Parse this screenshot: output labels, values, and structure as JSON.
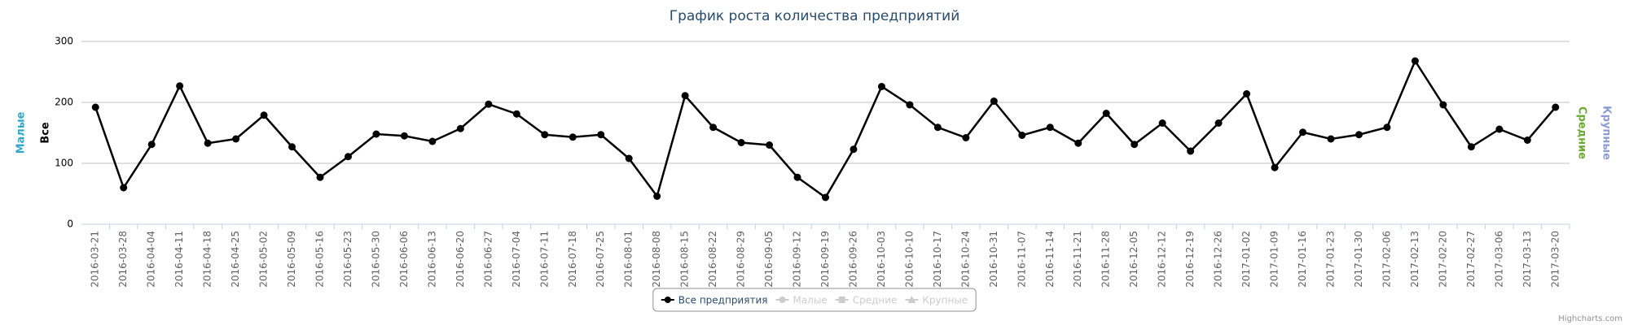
{
  "chart_data": {
    "type": "line",
    "title": "График роста количества предприятий",
    "categories": [
      "2016-03-21",
      "2016-03-28",
      "2016-04-04",
      "2016-04-11",
      "2016-04-18",
      "2016-04-25",
      "2016-05-02",
      "2016-05-09",
      "2016-05-16",
      "2016-05-23",
      "2016-05-30",
      "2016-06-06",
      "2016-06-13",
      "2016-06-20",
      "2016-06-27",
      "2016-07-04",
      "2016-07-11",
      "2016-07-18",
      "2016-07-25",
      "2016-08-01",
      "2016-08-08",
      "2016-08-15",
      "2016-08-22",
      "2016-08-29",
      "2016-09-05",
      "2016-09-12",
      "2016-09-19",
      "2016-09-26",
      "2016-10-03",
      "2016-10-10",
      "2016-10-17",
      "2016-10-24",
      "2016-10-31",
      "2016-11-07",
      "2016-11-14",
      "2016-11-21",
      "2016-11-28",
      "2016-12-05",
      "2016-12-12",
      "2016-12-19",
      "2016-12-26",
      "2017-01-02",
      "2017-01-09",
      "2017-01-16",
      "2017-01-23",
      "2017-01-30",
      "2017-02-06",
      "2017-02-13",
      "2017-02-20",
      "2017-02-27",
      "2017-03-06",
      "2017-03-13",
      "2017-03-20"
    ],
    "series": [
      {
        "name": "Все предприятия",
        "color": "#000000",
        "visible": true,
        "values": [
          192,
          60,
          131,
          227,
          133,
          140,
          179,
          127,
          77,
          111,
          148,
          145,
          136,
          157,
          197,
          181,
          147,
          143,
          147,
          108,
          46,
          211,
          159,
          134,
          130,
          77,
          44,
          123,
          226,
          196,
          159,
          142,
          202,
          146,
          159,
          133,
          182,
          131,
          166,
          120,
          166,
          214,
          93,
          151,
          140,
          147,
          159,
          268,
          196,
          127,
          156,
          138,
          192
        ]
      },
      {
        "name": "Малые",
        "color": "#2fa8c9",
        "visible": false
      },
      {
        "name": "Средние",
        "color": "#6aaa2e",
        "visible": false
      },
      {
        "name": "Крупные",
        "color": "#8b9bd3",
        "visible": false
      }
    ],
    "axes": [
      {
        "title": "Малые",
        "color": "#2fa8c9",
        "side": "left"
      },
      {
        "title": "Все",
        "color": "#000000",
        "side": "left"
      },
      {
        "title": "Средние",
        "color": "#6aaa2e",
        "side": "right"
      },
      {
        "title": "Крупные",
        "color": "#8b9bd3",
        "side": "right"
      }
    ],
    "ylim": [
      0,
      300
    ],
    "yticks": [
      0,
      100,
      200,
      300
    ],
    "grid": true,
    "legend": "bottom",
    "credits": "Highcharts.com"
  }
}
